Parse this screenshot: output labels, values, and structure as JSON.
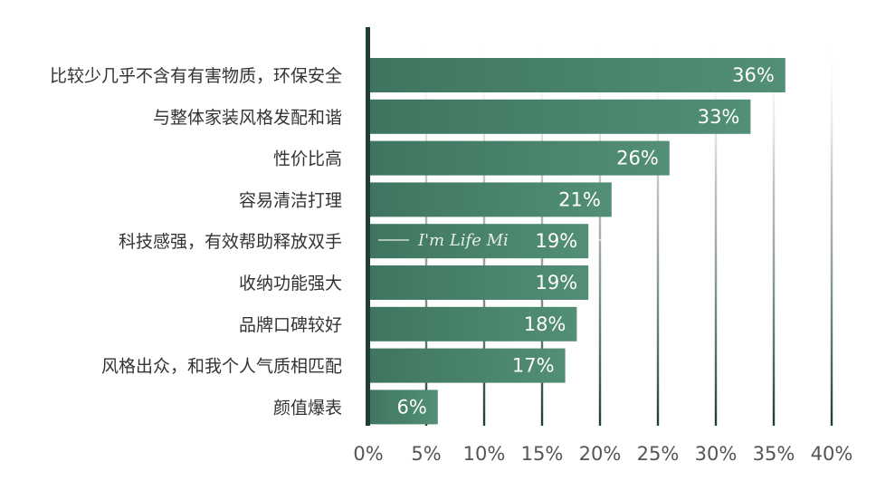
{
  "chart_data": {
    "type": "bar",
    "orientation": "horizontal",
    "categories": [
      "比较少几乎不含有有害物质，环保安全",
      "与整体家装风格发配和谐",
      "性价比高",
      "容易清洁打理",
      "科技感强，有效帮助释放双手",
      "收纳功能强大",
      "品牌口碑较好",
      "风格出众，和我个人气质相匹配",
      "颜值爆表"
    ],
    "values": [
      36,
      33,
      26,
      21,
      19,
      19,
      18,
      17,
      6
    ],
    "value_labels": [
      "36%",
      "33%",
      "26%",
      "21%",
      "19%",
      "19%",
      "18%",
      "17%",
      "6%"
    ],
    "xlim": [
      0,
      40
    ],
    "xticks": [
      "0%",
      "5%",
      "10%",
      "15%",
      "20%",
      "25%",
      "30%",
      "35%",
      "40%"
    ],
    "grid": true,
    "colors": {
      "bar": "#4e8a71",
      "bar_dark": "#3f7560",
      "axis": "#1f3d33",
      "grid_dark": "#243f35"
    }
  },
  "watermark": {
    "text": "I'm Life Mi"
  }
}
